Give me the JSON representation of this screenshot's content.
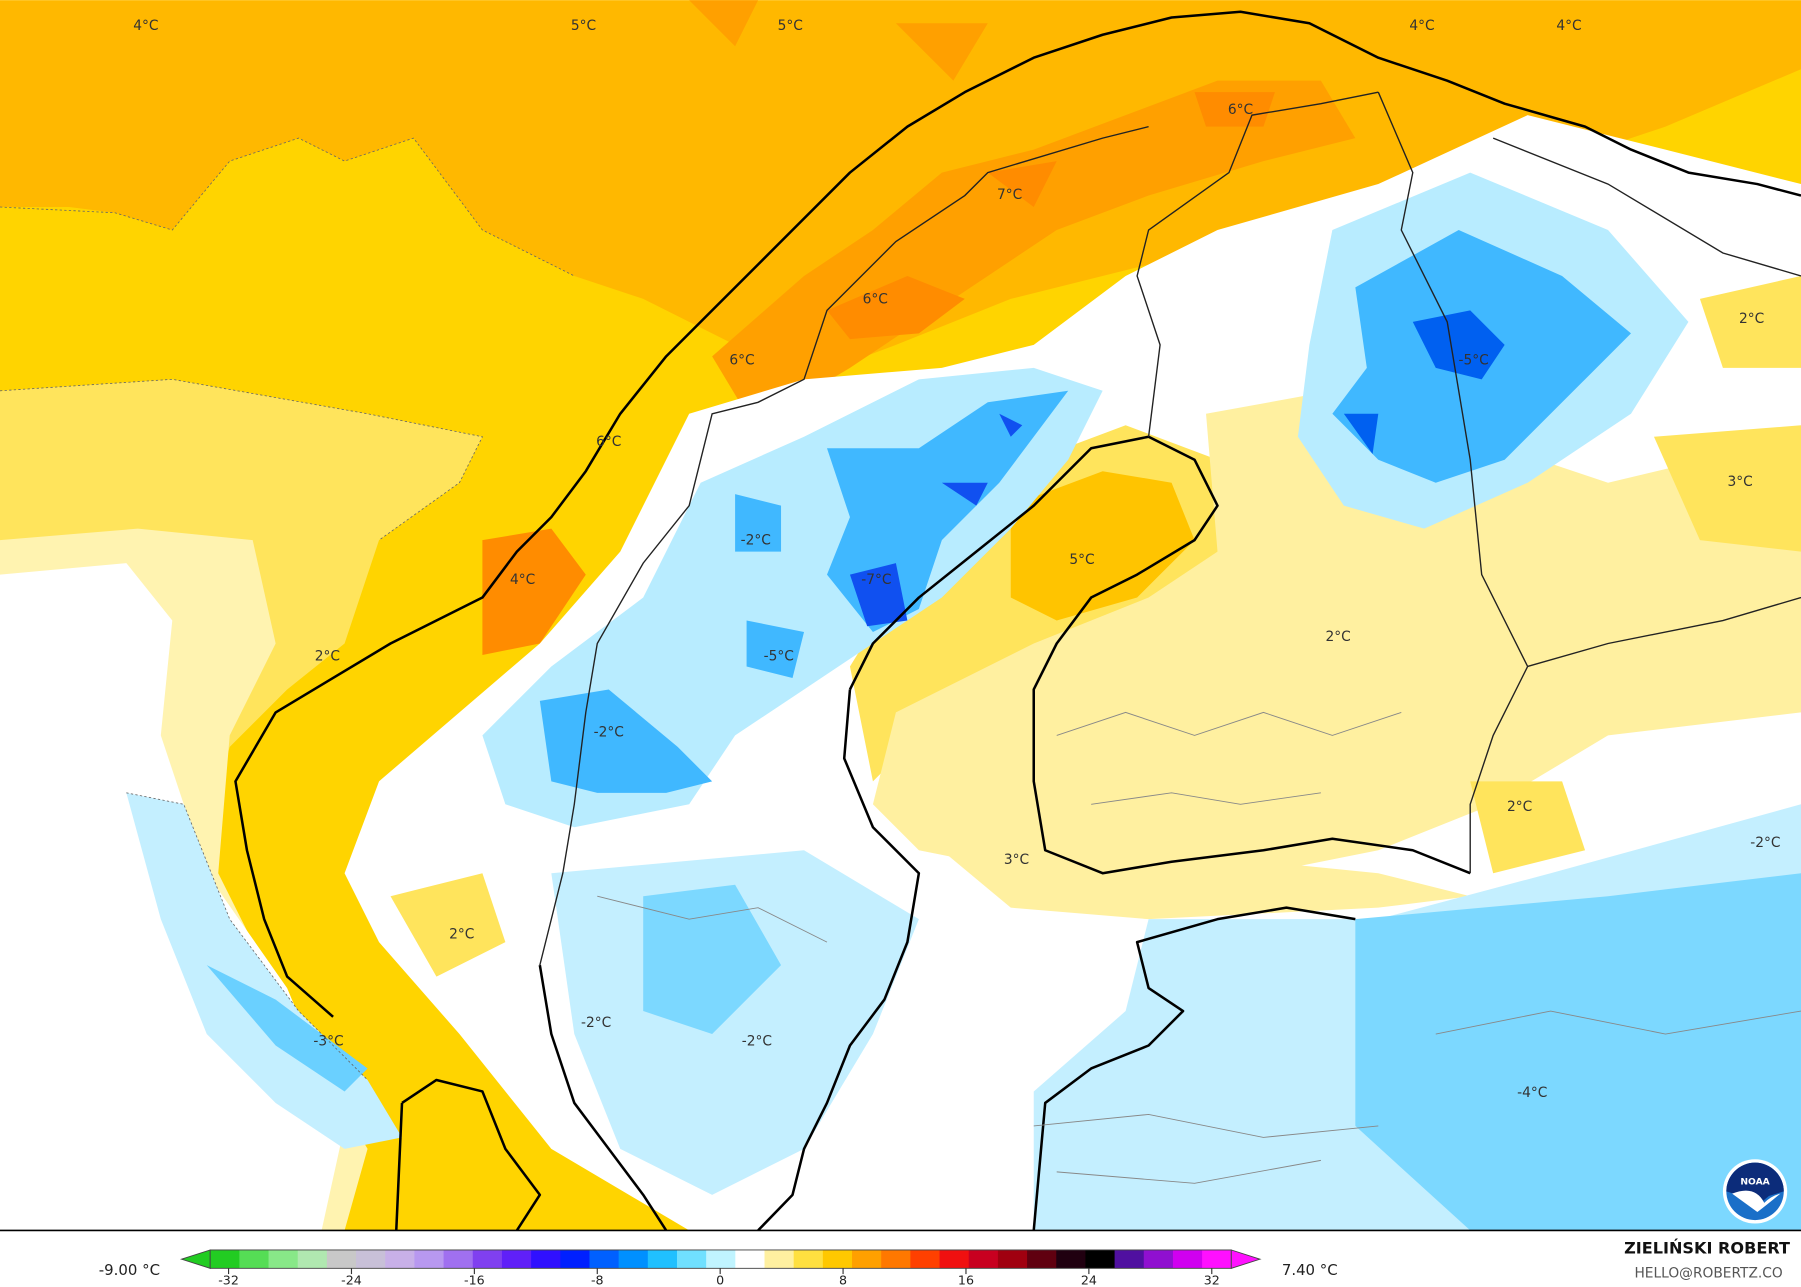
{
  "map": {
    "labels": [
      "4°C",
      "5°C",
      "5°C",
      "4°C",
      "4°C",
      "6°C",
      "7°C",
      "6°C",
      "6°C",
      "6°C",
      "-5°C",
      "2°C",
      "3°C",
      "-2°C",
      "-7°C",
      "5°C",
      "4°C",
      "2°C",
      "-5°C",
      "2°C",
      "-2°C",
      "2°C",
      "-2°C",
      "3°C",
      "2°C",
      "-2°C",
      "-2°C",
      "-3°C",
      "-4°C"
    ]
  },
  "colorbar": {
    "min_label": "-9.00 °C",
    "max_label": "7.40 °C",
    "ticks": [
      "-32",
      "-24",
      "-16",
      "-8",
      "0",
      "8",
      "16",
      "24",
      "32"
    ],
    "colors": [
      "#22cc22",
      "#55dd55",
      "#88e888",
      "#b0e8b0",
      "#c8c8c8",
      "#c8c0d8",
      "#c8b0e8",
      "#b898f0",
      "#a070f0",
      "#8040f0",
      "#6020f8",
      "#3010ff",
      "#0020ff",
      "#0060ff",
      "#0090ff",
      "#20c0ff",
      "#70e0ff",
      "#c0f4ff",
      "#ffffff",
      "#fff0a0",
      "#ffe040",
      "#ffc800",
      "#ffa000",
      "#ff7800",
      "#ff4000",
      "#f01010",
      "#c80020",
      "#a00010",
      "#600010",
      "#200010",
      "#000000",
      "#5010a0",
      "#9010d0",
      "#d000f0",
      "#ff10ff"
    ]
  },
  "credits": {
    "author": "ZIELIŃSKI ROBERT",
    "email": "HELLO@ROBERTZ.CO",
    "logo_text": "NOAA"
  }
}
